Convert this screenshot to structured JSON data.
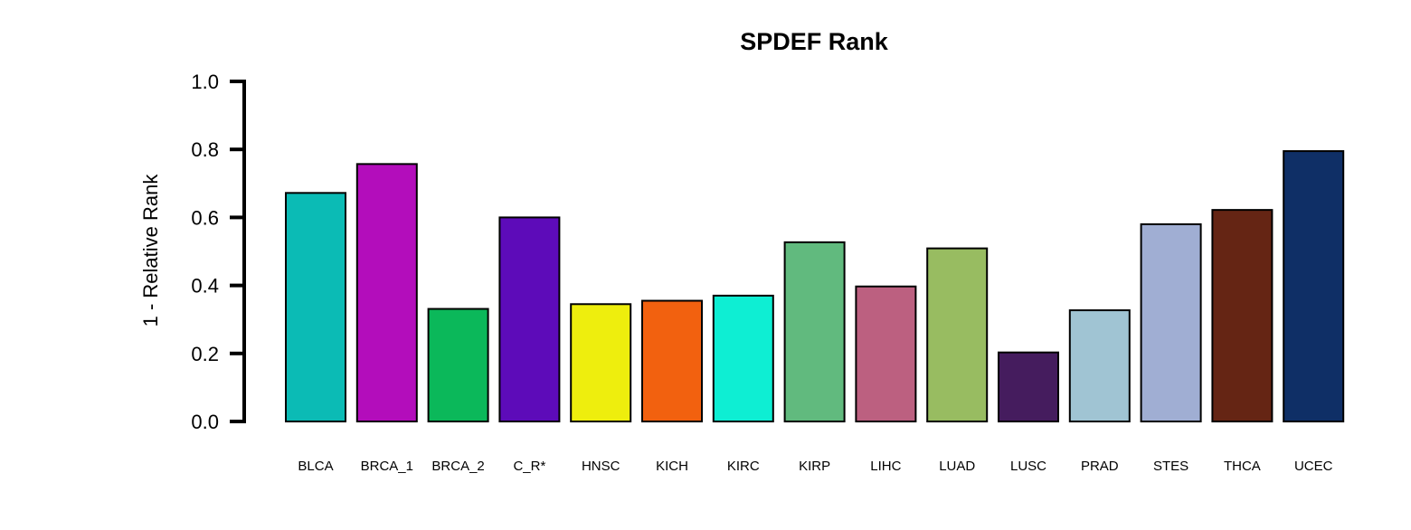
{
  "chart_data": {
    "type": "bar",
    "title": "SPDEF Rank",
    "xlabel": "",
    "ylabel": "1 - Relative Rank",
    "ylim": [
      0,
      1.0
    ],
    "yticks": [
      "0.0",
      "0.2",
      "0.4",
      "0.6",
      "0.8",
      "1.0"
    ],
    "grid": false,
    "legend": "none",
    "categories": [
      "BLCA",
      "BRCA_1",
      "BRCA_2",
      "C_R*",
      "HNSC",
      "KICH",
      "KIRC",
      "KIRP",
      "LIHC",
      "LUAD",
      "LUSC",
      "PRAD",
      "STES",
      "THCA",
      "UCEC"
    ],
    "values": [
      0.672,
      0.757,
      0.331,
      0.6,
      0.345,
      0.355,
      0.37,
      0.527,
      0.397,
      0.509,
      0.203,
      0.327,
      0.58,
      0.622,
      0.795
    ],
    "colors": [
      "#0BBBB5",
      "#B30DBB",
      "#0BB85A",
      "#5D0BB9",
      "#EEEE0D",
      "#F2610F",
      "#0EEED3",
      "#61BA7E",
      "#BC6080",
      "#98BC61",
      "#451C5E",
      "#A0C4D3",
      "#A0AED3",
      "#652514",
      "#0F2F66"
    ]
  }
}
